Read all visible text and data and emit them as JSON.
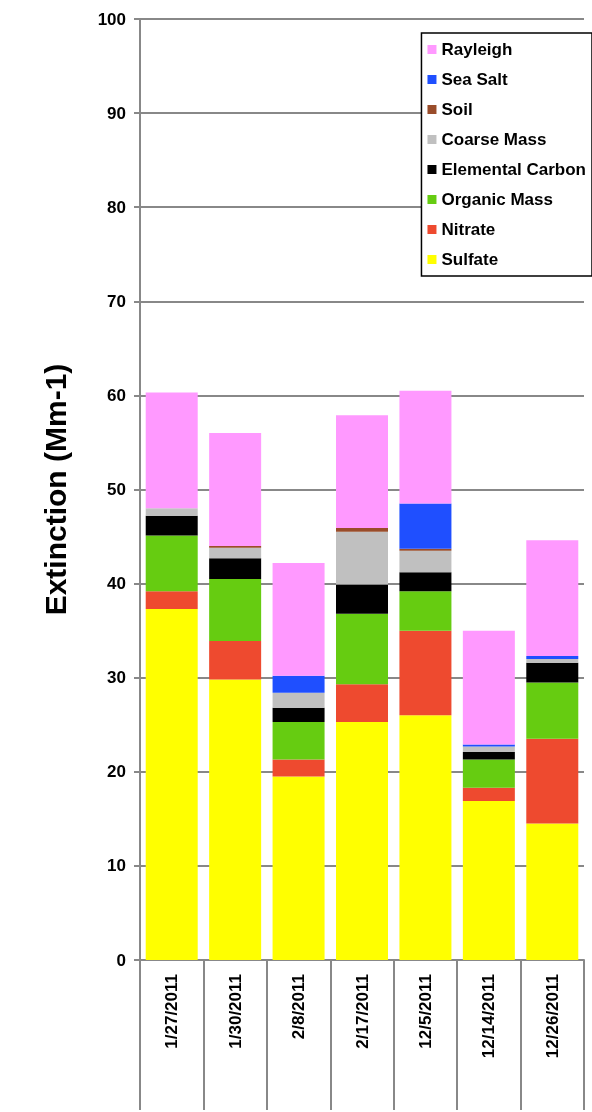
{
  "chart_data": {
    "type": "bar",
    "stacked": true,
    "ylabel": "Extinction (Mm-1)",
    "categories": [
      "1/27/2011",
      "1/30/2011",
      "2/8/2011",
      "2/17/2011",
      "12/5/2011",
      "12/14/2011",
      "12/26/2011"
    ],
    "series": [
      {
        "name": "Sulfate",
        "color": "#ffff00",
        "values": [
          37.3,
          29.8,
          19.5,
          25.3,
          26.0,
          16.9,
          14.5
        ]
      },
      {
        "name": "Nitrate",
        "color": "#ee4a2f",
        "values": [
          1.9,
          4.1,
          1.8,
          4.0,
          9.0,
          1.4,
          9.0
        ]
      },
      {
        "name": "Organic Mass",
        "color": "#66cc11",
        "values": [
          5.9,
          6.6,
          4.0,
          7.5,
          4.2,
          3.0,
          6.0
        ]
      },
      {
        "name": "Elemental Carbon",
        "color": "#000000",
        "values": [
          2.1,
          2.2,
          1.5,
          3.1,
          2.0,
          0.8,
          2.1
        ]
      },
      {
        "name": "Coarse Mass",
        "color": "#c0c0c0",
        "values": [
          0.8,
          1.1,
          1.6,
          5.6,
          2.3,
          0.6,
          0.4
        ]
      },
      {
        "name": "Soil",
        "color": "#994c2a",
        "values": [
          0,
          0.2,
          0,
          0.4,
          0.2,
          0,
          0
        ]
      },
      {
        "name": "Sea Salt",
        "color": "#1f4fff",
        "values": [
          0,
          0,
          1.8,
          0,
          4.8,
          0.2,
          0.3
        ]
      },
      {
        "name": "Rayleigh",
        "color": "#ff99ff",
        "values": [
          12.3,
          12.0,
          12.0,
          12.0,
          12.0,
          12.1,
          12.3
        ]
      }
    ],
    "ylim": [
      0,
      100
    ],
    "yticks": [
      0,
      10,
      20,
      30,
      40,
      50,
      60,
      70,
      80,
      90,
      100
    ],
    "grid": "y",
    "legend": "top right"
  }
}
